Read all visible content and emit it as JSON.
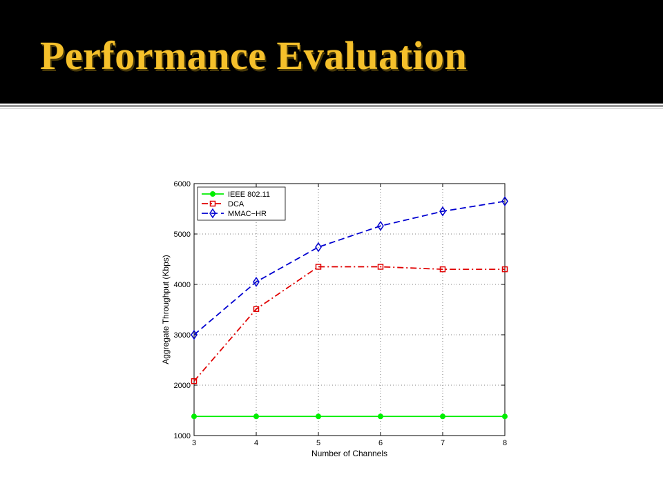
{
  "slide": {
    "title": "Performance Evaluation",
    "title_color": "#f5c02b",
    "header_background": "#000000"
  },
  "chart_data": {
    "type": "line",
    "title": "",
    "xlabel": "Number of Channels",
    "ylabel": "Aggregate Throughput (Kbps)",
    "x": [
      3,
      4,
      5,
      6,
      7,
      8
    ],
    "xlim": [
      3,
      8
    ],
    "ylim": [
      1000,
      6000
    ],
    "xticks": [
      3,
      4,
      5,
      6,
      7,
      8
    ],
    "yticks": [
      1000,
      2000,
      3000,
      4000,
      5000,
      6000
    ],
    "grid": true,
    "grid_style": "dotted",
    "legend_position": "top-left",
    "series": [
      {
        "name": "IEEE 802.11",
        "values": [
          1380,
          1380,
          1380,
          1380,
          1380,
          1380
        ],
        "color": "#00ee00",
        "line_style": "solid",
        "marker": "filled-circle"
      },
      {
        "name": "DCA",
        "values": [
          2080,
          3510,
          4350,
          4350,
          4300,
          4300
        ],
        "color": "#e00000",
        "line_style": "dash-dot",
        "marker": "square"
      },
      {
        "name": "MMAC−HR",
        "values": [
          3000,
          4050,
          4740,
          5160,
          5450,
          5650
        ],
        "color": "#0000d0",
        "line_style": "dashed",
        "marker": "diamond"
      }
    ]
  }
}
